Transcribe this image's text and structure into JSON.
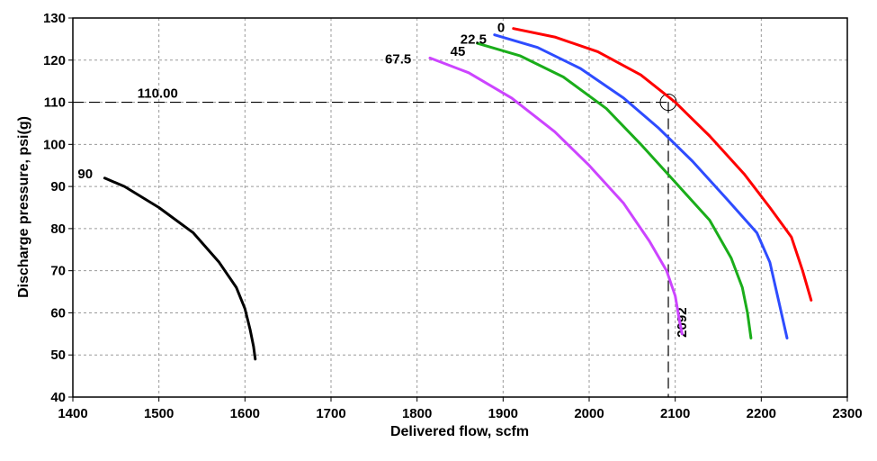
{
  "chart_data": {
    "type": "line",
    "title": "",
    "xlabel": "Delivered flow, scfm",
    "ylabel": "Discharge pressure, psi(g)",
    "xlim": [
      1400,
      2300
    ],
    "ylim": [
      40,
      130
    ],
    "xticks": [
      "1400",
      "1500",
      "1600",
      "1700",
      "1800",
      "1900",
      "2000",
      "2100",
      "2200",
      "2300"
    ],
    "yticks": [
      "40",
      "50",
      "60",
      "70",
      "80",
      "90",
      "100",
      "110",
      "120",
      "130"
    ],
    "grid": true,
    "series": [
      {
        "name": "0",
        "color": "#ff0000",
        "x": [
          1912,
          1960,
          2010,
          2060,
          2100,
          2140,
          2180,
          2210,
          2235,
          2248,
          2258
        ],
        "y": [
          127.5,
          125.5,
          122,
          116.5,
          110,
          102,
          93,
          85,
          78,
          70,
          63
        ]
      },
      {
        "name": "22.5",
        "color": "#2e4cff",
        "x": [
          1890,
          1940,
          1990,
          2040,
          2080,
          2120,
          2160,
          2195,
          2210,
          2220,
          2230
        ],
        "y": [
          126,
          123,
          118,
          111,
          104,
          96,
          87,
          79,
          72,
          63,
          54
        ]
      },
      {
        "name": "45",
        "color": "#1aad1a",
        "x": [
          1870,
          1920,
          1970,
          2020,
          2060,
          2100,
          2140,
          2165,
          2178,
          2184,
          2188
        ],
        "y": [
          124,
          121,
          116,
          108.5,
          100,
          91,
          82,
          73,
          66,
          60,
          54
        ]
      },
      {
        "name": "67.5",
        "color": "#cc44ff",
        "x": [
          1815,
          1860,
          1910,
          1960,
          2000,
          2040,
          2070,
          2090,
          2100,
          2105,
          2108
        ],
        "y": [
          120.5,
          117,
          111,
          103,
          95,
          86,
          77,
          70,
          64,
          58,
          55
        ]
      },
      {
        "name": "90",
        "color": "#000000",
        "x": [
          1437,
          1460,
          1500,
          1540,
          1570,
          1590,
          1600,
          1606,
          1610,
          1612
        ],
        "y": [
          92,
          90,
          85,
          79,
          72,
          66,
          61,
          56,
          52,
          49
        ]
      }
    ],
    "reference_lines": {
      "horizontal": {
        "value": 110,
        "label": "110.00"
      },
      "vertical": {
        "value": 2092,
        "label": "2092"
      },
      "marker": {
        "x": 2092,
        "y": 110
      }
    }
  }
}
